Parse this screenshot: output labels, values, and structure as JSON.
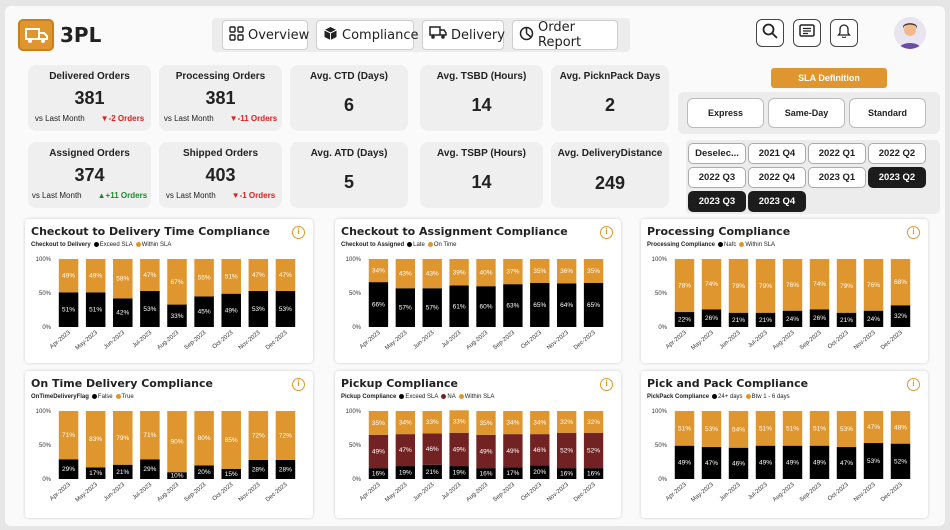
{
  "app": {
    "brand": "3PL"
  },
  "nav": {
    "tabs": [
      {
        "label": "Overview",
        "icon": "grid-icon"
      },
      {
        "label": "Compliance",
        "icon": "box-icon"
      },
      {
        "label": "Delivery",
        "icon": "truck-icon"
      },
      {
        "label": "Order Report",
        "icon": "pie-icon"
      }
    ]
  },
  "kpis": [
    {
      "title": "Delivered Orders",
      "value": "381",
      "vs": "vs Last Month",
      "delta": "▼-2 Orders",
      "trend": "neg"
    },
    {
      "title": "Processing Orders",
      "value": "381",
      "vs": "vs Last Month",
      "delta": "▼-11 Orders",
      "trend": "neg"
    },
    {
      "title": "Avg. CTD (Days)",
      "value": "6"
    },
    {
      "title": "Avg. TSBD (Hours)",
      "value": "14"
    },
    {
      "title": "Avg. PicknPack Days",
      "value": "2"
    },
    {
      "title": "Assigned Orders",
      "value": "374",
      "vs": "vs Last Month",
      "delta": "▲+11 Orders",
      "trend": "pos"
    },
    {
      "title": "Shipped Orders",
      "value": "403",
      "vs": "vs Last Month",
      "delta": "▼-1 Orders",
      "trend": "neg"
    },
    {
      "title": "Avg. ATD (Days)",
      "value": "5"
    },
    {
      "title": "Avg. TSBP (Hours)",
      "value": "14"
    },
    {
      "title": "Avg. DeliveryDistance",
      "value": "249"
    }
  ],
  "sla": {
    "definition_label": "SLA Definition",
    "options": [
      "Express",
      "Same-Day",
      "Standard"
    ]
  },
  "quarters": [
    {
      "label": "Deselec...",
      "selected": false
    },
    {
      "label": "2021 Q4",
      "selected": false
    },
    {
      "label": "2022 Q1",
      "selected": false
    },
    {
      "label": "2022 Q2",
      "selected": false
    },
    {
      "label": "2022 Q3",
      "selected": false
    },
    {
      "label": "2022 Q4",
      "selected": false
    },
    {
      "label": "2023 Q1",
      "selected": false
    },
    {
      "label": "2023 Q2",
      "selected": true
    },
    {
      "label": "2023 Q3",
      "selected": true
    },
    {
      "label": "2023 Q4",
      "selected": true
    }
  ],
  "colors": {
    "black": "#000000",
    "orange": "#e0962e",
    "maroon": "#722222",
    "info": "#e0962e"
  },
  "chart_data": [
    {
      "type": "bar",
      "stacked": true,
      "title": "Checkout to Delivery Time Compliance",
      "legend_title": "Checkout to Delivery",
      "categories": [
        "Apr-2023",
        "May-2023",
        "Jun-2023",
        "Jul-2023",
        "Aug-2023",
        "Sep-2023",
        "Oct-2023",
        "Nov-2023",
        "Dec-2023"
      ],
      "ylim": [
        0,
        100
      ],
      "yticks": [
        "0%",
        "50%",
        "100%"
      ],
      "series": [
        {
          "name": "Exceed SLA",
          "color": "#000000",
          "values": [
            51,
            51,
            42,
            53,
            33,
            45,
            49,
            53,
            53
          ]
        },
        {
          "name": "Within SLA",
          "color": "#e0962e",
          "values": [
            49,
            49,
            58,
            47,
            67,
            55,
            51,
            47,
            47
          ]
        }
      ]
    },
    {
      "type": "bar",
      "stacked": true,
      "title": "Checkout to Assignment Compliance",
      "legend_title": "Checkout to Assigned",
      "categories": [
        "Apr-2023",
        "May-2023",
        "Jun-2023",
        "Jul-2023",
        "Aug-2023",
        "Sep-2023",
        "Oct-2023",
        "Nov-2023",
        "Dec-2023"
      ],
      "ylim": [
        0,
        100
      ],
      "yticks": [
        "0%",
        "50%",
        "100%"
      ],
      "series": [
        {
          "name": "Late",
          "color": "#000000",
          "values": [
            66,
            57,
            57,
            61,
            60,
            63,
            65,
            64,
            65
          ]
        },
        {
          "name": "On Time",
          "color": "#e0962e",
          "values": [
            34,
            43,
            43,
            39,
            40,
            37,
            35,
            36,
            35
          ]
        }
      ]
    },
    {
      "type": "bar",
      "stacked": true,
      "title": "Processing Compliance",
      "legend_title": "Processing Compliance",
      "categories": [
        "Apr-2023",
        "May-2023",
        "Jun-2023",
        "Jul-2023",
        "Aug-2023",
        "Sep-2023",
        "Oct-2023",
        "Nov-2023",
        "Dec-2023"
      ],
      "ylim": [
        0,
        100
      ],
      "yticks": [
        "0%",
        "50%",
        "100%"
      ],
      "series": [
        {
          "name": "Nafc",
          "color": "#000000",
          "values": [
            22,
            26,
            21,
            21,
            24,
            26,
            21,
            24,
            32
          ]
        },
        {
          "name": "Within SLA",
          "color": "#e0962e",
          "values": [
            78,
            74,
            79,
            79,
            76,
            74,
            79,
            76,
            68
          ]
        }
      ]
    },
    {
      "type": "bar",
      "stacked": true,
      "title": "On Time Delivery Compliance",
      "legend_title": "OnTimeDeliveryFlag",
      "categories": [
        "Apr-2023",
        "May-2023",
        "Jun-2023",
        "Jul-2023",
        "Aug-2023",
        "Sep-2023",
        "Oct-2023",
        "Nov-2023",
        "Dec-2023"
      ],
      "ylim": [
        0,
        100
      ],
      "yticks": [
        "0%",
        "50%",
        "100%"
      ],
      "series": [
        {
          "name": "False",
          "color": "#000000",
          "values": [
            29,
            17,
            21,
            29,
            10,
            20,
            15,
            28,
            28
          ]
        },
        {
          "name": "True",
          "color": "#e0962e",
          "values": [
            71,
            83,
            79,
            71,
            90,
            80,
            85,
            72,
            72
          ]
        }
      ]
    },
    {
      "type": "bar",
      "stacked": true,
      "title": "Pickup Compliance",
      "legend_title": "Pickup Compliance",
      "categories": [
        "Apr-2023",
        "May-2023",
        "Jun-2023",
        "Jul-2023",
        "Aug-2023",
        "Sep-2023",
        "Oct-2023",
        "Nov-2023",
        "Dec-2023"
      ],
      "ylim": [
        0,
        100
      ],
      "yticks": [
        "0%",
        "50%",
        "100%"
      ],
      "series": [
        {
          "name": "Exceed SLA",
          "color": "#000000",
          "values": [
            16,
            19,
            21,
            19,
            16,
            17,
            20,
            16,
            16
          ]
        },
        {
          "name": "NA",
          "color": "#722222",
          "values": [
            49,
            47,
            46,
            49,
            49,
            49,
            46,
            52,
            52
          ]
        },
        {
          "name": "Within SLA",
          "color": "#e0962e",
          "values": [
            35,
            34,
            33,
            33,
            35,
            34,
            34,
            32,
            32
          ]
        }
      ]
    },
    {
      "type": "bar",
      "stacked": true,
      "title": "Pick and Pack Compliance",
      "legend_title": "PickPack Compliance",
      "categories": [
        "Apr-2023",
        "May-2023",
        "Jun-2023",
        "Jul-2023",
        "Aug-2023",
        "Sep-2023",
        "Oct-2023",
        "Nov-2023",
        "Dec-2023"
      ],
      "ylim": [
        0,
        100
      ],
      "yticks": [
        "0%",
        "50%",
        "100%"
      ],
      "series": [
        {
          "name": "24+ days",
          "color": "#000000",
          "values": [
            49,
            47,
            46,
            49,
            49,
            49,
            47,
            53,
            52
          ]
        },
        {
          "name": "Btw 1 - 6 days",
          "color": "#e0962e",
          "values": [
            51,
            53,
            54,
            51,
            51,
            51,
            53,
            47,
            48
          ]
        }
      ]
    }
  ]
}
